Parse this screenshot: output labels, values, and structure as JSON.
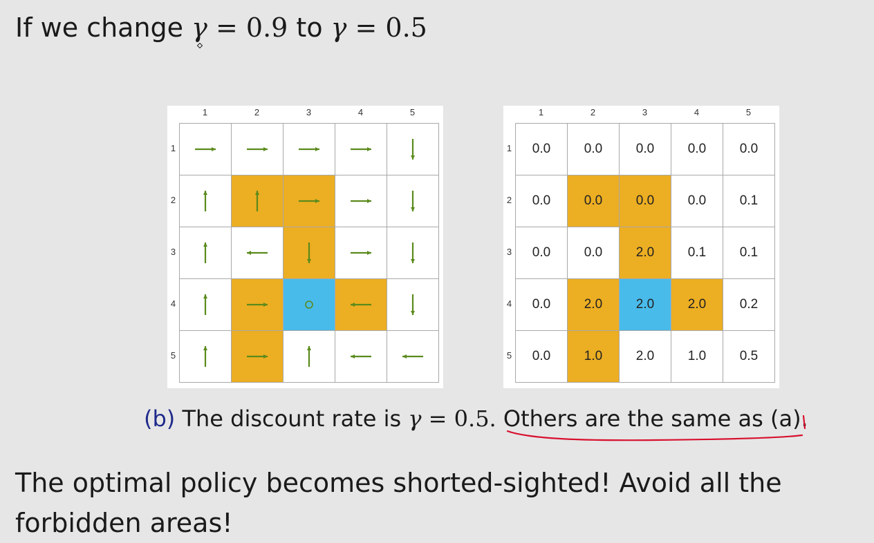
{
  "title": {
    "prefix": "If we change",
    "gamma_old_lhs": "γ",
    "gamma_old_value": "= 0.9",
    "connector": "to",
    "gamma_new_lhs": "γ",
    "gamma_new_value": "= 0.5"
  },
  "col_labels": [
    "1",
    "2",
    "3",
    "4",
    "5"
  ],
  "row_labels": [
    "1",
    "2",
    "3",
    "4",
    "5"
  ],
  "colors": {
    "forbidden": "#ecae22",
    "target": "#49bbea",
    "arrow": "#5a8a1c",
    "grid_line": "#a8a8a8",
    "caption_tag": "#1f2a8a",
    "underline": "#d8102e"
  },
  "cell_types": [
    [
      "normal",
      "normal",
      "normal",
      "normal",
      "normal"
    ],
    [
      "normal",
      "forbidden",
      "forbidden",
      "normal",
      "normal"
    ],
    [
      "normal",
      "normal",
      "forbidden",
      "normal",
      "normal"
    ],
    [
      "normal",
      "forbidden",
      "target",
      "forbidden",
      "normal"
    ],
    [
      "normal",
      "forbidden",
      "normal",
      "normal",
      "normal"
    ]
  ],
  "policy": [
    [
      "right",
      "right",
      "right",
      "right",
      "down"
    ],
    [
      "up",
      "up",
      "right",
      "right",
      "down"
    ],
    [
      "up",
      "left",
      "down",
      "right",
      "down"
    ],
    [
      "up",
      "right",
      "stay",
      "left",
      "down"
    ],
    [
      "up",
      "right",
      "up",
      "left",
      "left"
    ]
  ],
  "state_values": [
    [
      "0.0",
      "0.0",
      "0.0",
      "0.0",
      "0.0"
    ],
    [
      "0.0",
      "0.0",
      "0.0",
      "0.0",
      "0.1"
    ],
    [
      "0.0",
      "0.0",
      "2.0",
      "0.1",
      "0.1"
    ],
    [
      "0.0",
      "2.0",
      "2.0",
      "2.0",
      "0.2"
    ],
    [
      "0.0",
      "1.0",
      "2.0",
      "1.0",
      "0.5"
    ]
  ],
  "caption": {
    "tag": "(b)",
    "text_before": "The discount rate is",
    "gamma_lhs": "γ",
    "gamma_value": "= 0.5.",
    "text_after": "Others are the same as (a)."
  },
  "conclusion": "The optimal policy becomes shorted-sighted! Avoid all the forbidden areas!"
}
